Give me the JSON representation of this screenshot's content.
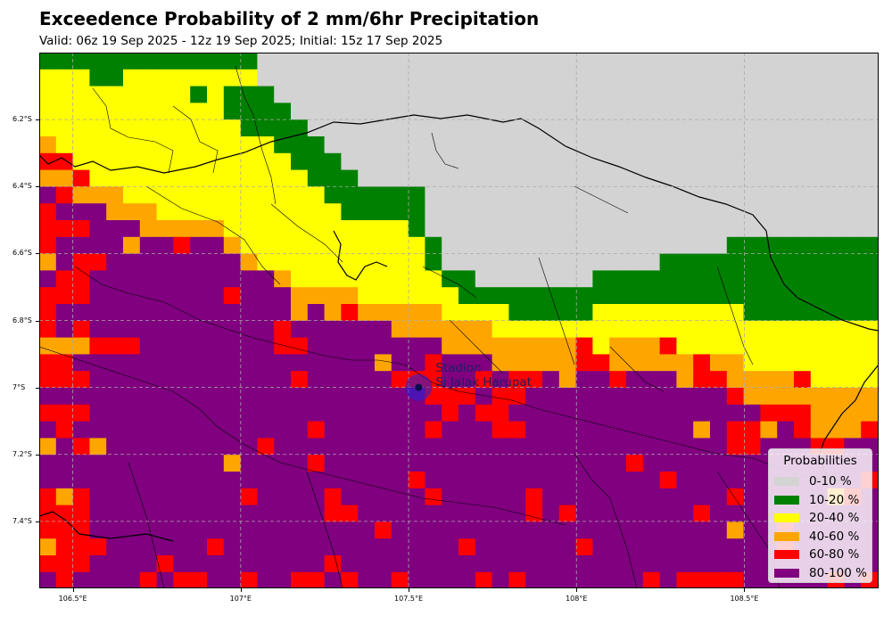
{
  "title": "Exceedence Probability of 2 mm/6hr Precipitation",
  "subtitle": "Valid: 06z 19 Sep 2025 - 12z 19 Sep 2025; Initial: 15z 17 Sep 2025",
  "axes": {
    "x_ticks": [
      "106.5°E",
      "107°E",
      "107.5°E",
      "108°E",
      "108.5°E"
    ],
    "y_ticks": [
      "6.2°S",
      "6.4°S",
      "6.6°S",
      "6.8°S",
      "7°S",
      "7.2°S",
      "7.4°S"
    ],
    "grid": "dashed"
  },
  "station": {
    "name_line1": "Stadion",
    "name_line2": "Si Jalak Harupat",
    "lon": 107.53,
    "lat": -7.0,
    "color": "#2222dd"
  },
  "legend": {
    "title": "Probabilities",
    "items": [
      {
        "label": "0-10 %",
        "color": "#d3d3d3"
      },
      {
        "label": "10-20 %",
        "color": "#008000"
      },
      {
        "label": "20-40 %",
        "color": "#ffff00"
      },
      {
        "label": "40-60 %",
        "color": "#ffa500"
      },
      {
        "label": "60-80 %",
        "color": "#ff0000"
      },
      {
        "label": "80-100 %",
        "color": "#800080"
      }
    ]
  }
}
